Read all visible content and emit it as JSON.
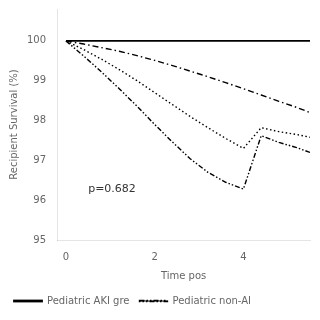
{
  "chart_data": {
    "type": "line",
    "x_label": "Time pos",
    "y_label": "Recipient Survival (%)",
    "x": [
      0,
      0.4,
      0.8,
      1.2,
      1.6,
      2.0,
      2.4,
      2.8,
      3.2,
      3.6,
      4.0,
      4.4,
      4.8,
      5.2,
      5.5
    ],
    "series": [
      {
        "name": "Pediatric AKI gre",
        "color": "black",
        "line_style": "solid",
        "values": [
          100,
          100,
          100,
          100,
          100,
          100,
          100,
          100,
          100,
          100,
          100,
          100,
          100,
          100,
          100
        ]
      },
      {
        "color": "black",
        "line_style": "dashdot",
        "values": [
          100,
          99.92,
          99.83,
          99.74,
          99.63,
          99.51,
          99.38,
          99.24,
          99.1,
          98.95,
          98.8,
          98.64,
          98.48,
          98.33,
          98.2
        ]
      },
      {
        "color": "black",
        "line_style": "dotted",
        "values": [
          100,
          99.78,
          99.54,
          99.28,
          99.0,
          98.7,
          98.4,
          98.1,
          97.82,
          97.55,
          97.3,
          97.82,
          97.72,
          97.65,
          97.58
        ]
      },
      {
        "name": "Pediatric non-AI",
        "color": "black",
        "line_style": "dashdotdot",
        "values": [
          100,
          99.62,
          99.22,
          98.8,
          98.36,
          97.9,
          97.46,
          97.04,
          96.7,
          96.45,
          96.28,
          97.62,
          97.45,
          97.32,
          97.2
        ]
      }
    ],
    "xlim": [
      -0.2,
      5.5
    ],
    "xticks": [
      0,
      2,
      4
    ],
    "ylim": [
      95,
      100.8
    ],
    "yticks": [
      95,
      96,
      97,
      98,
      99,
      100
    ],
    "annotations": [
      {
        "text": "p=0.682",
        "x": 0.5,
        "y": 96.15
      }
    ],
    "legend": "bottom",
    "marker": "none",
    "grid": false
  }
}
